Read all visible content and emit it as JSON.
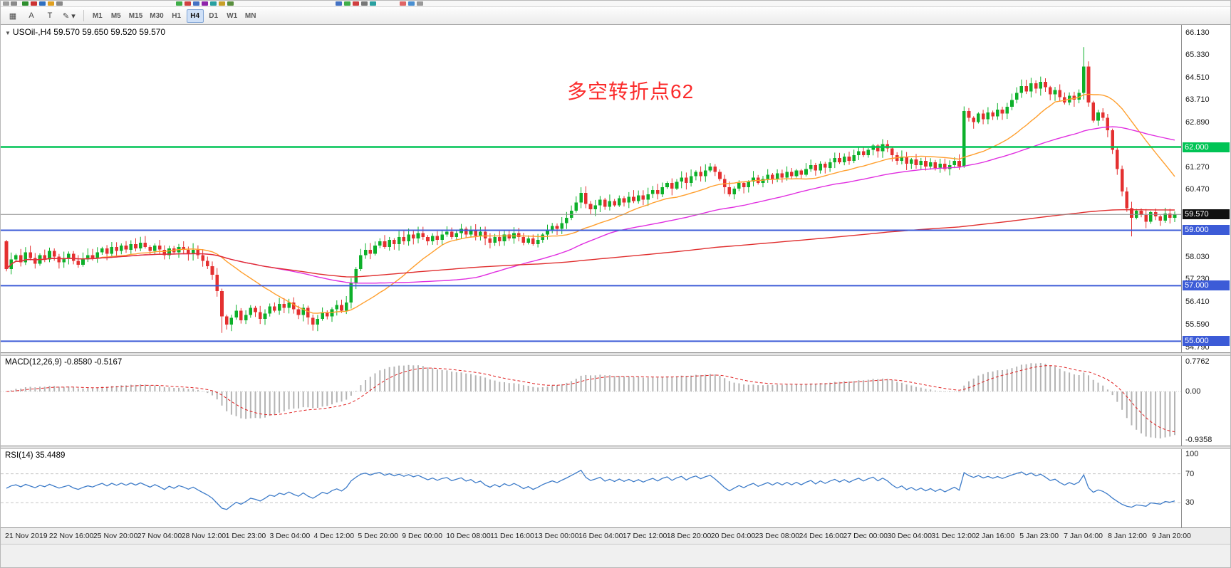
{
  "app": {
    "toolbar": {
      "tools": [
        {
          "name": "grid-handle",
          "glyph": "▦"
        },
        {
          "name": "cursor-a",
          "glyph": "A"
        },
        {
          "name": "text-t",
          "glyph": "T"
        },
        {
          "name": "draw-tools",
          "glyph": "✎ ▾"
        }
      ],
      "timeframes": [
        "M1",
        "M5",
        "M15",
        "M30",
        "H1",
        "H4",
        "D1",
        "W1",
        "MN"
      ],
      "active_timeframe": "H4"
    },
    "top_icon_fragments": [
      {
        "x": 3,
        "c": "#9e9e9e"
      },
      {
        "x": 14,
        "c": "#8a8a8a"
      },
      {
        "x": 30,
        "c": "#2f8f2f"
      },
      {
        "x": 42,
        "c": "#cc3333"
      },
      {
        "x": 54,
        "c": "#2f6fbf"
      },
      {
        "x": 66,
        "c": "#e0a020"
      },
      {
        "x": 78,
        "c": "#888888"
      },
      {
        "x": 246,
        "c": "#3fae49"
      },
      {
        "x": 258,
        "c": "#d04040"
      },
      {
        "x": 270,
        "c": "#4472c4"
      },
      {
        "x": 282,
        "c": "#8e24aa"
      },
      {
        "x": 294,
        "c": "#2aa0a0"
      },
      {
        "x": 306,
        "c": "#c8a028"
      },
      {
        "x": 318,
        "c": "#5a8f3f"
      },
      {
        "x": 470,
        "c": "#4472c4"
      },
      {
        "x": 482,
        "c": "#3fae49"
      },
      {
        "x": 494,
        "c": "#d04040"
      },
      {
        "x": 506,
        "c": "#777777"
      },
      {
        "x": 518,
        "c": "#2aa0a0"
      },
      {
        "x": 560,
        "c": "#e06666"
      },
      {
        "x": 572,
        "c": "#4a90d2"
      },
      {
        "x": 584,
        "c": "#999999"
      }
    ]
  },
  "chart": {
    "collapse_glyph": "▼",
    "symbol_label": "USOil-,H4",
    "quote": "59.570 59.650 59.520 59.570",
    "annotation": {
      "text": "多空转折点62",
      "color": "#fb2b2b"
    },
    "y_axis_labels": [
      "66.130",
      "65.330",
      "64.510",
      "63.710",
      "62.890",
      "61.270",
      "60.470",
      "58.030",
      "57.230",
      "56.410",
      "55.590",
      "54.790"
    ]
  },
  "macd": {
    "label": "MACD(12,26,9)",
    "value_main": "-0.8580",
    "value_signal": "-0.5167",
    "fast": 12,
    "slow": 26,
    "signal": 9,
    "axis_labels": [
      "0.7762",
      "0.00",
      "-0.9358"
    ],
    "hist_color": "#b4b4b4",
    "signal_color": "#e02020"
  },
  "rsi": {
    "label": "RSI(14)",
    "value": "35.4489",
    "period": 14,
    "levels": [
      70,
      30
    ],
    "axis_labels": [
      "100",
      "70",
      "30"
    ],
    "color": "#3e7cc9"
  },
  "time_axis": {
    "labels": [
      "21 Nov 2019",
      "22 Nov 16:00",
      "25 Nov 20:00",
      "27 Nov 04:00",
      "28 Nov 12:00",
      "1 Dec 23:00",
      "3 Dec 04:00",
      "4 Dec 12:00",
      "5 Dec 20:00",
      "9 Dec 00:00",
      "10 Dec 08:00",
      "11 Dec 16:00",
      "13 Dec 00:00",
      "16 Dec 04:00",
      "17 Dec 12:00",
      "18 Dec 20:00",
      "20 Dec 04:00",
      "23 Dec 08:00",
      "24 Dec 16:00",
      "27 Dec 00:00",
      "30 Dec 04:00",
      "31 Dec 12:00",
      "2 Jan 16:00",
      "5 Jan 23:00",
      "7 Jan 04:00",
      "8 Jan 12:00",
      "9 Jan 20:00"
    ]
  },
  "chart_data": {
    "type": "candlestick",
    "symbol": "USOil",
    "timeframe": "H4",
    "ylim": [
      54.6,
      66.4
    ],
    "first_open": 58.6,
    "up_color": "#0db02a",
    "down_color": "#e43030",
    "bid_line_color": "#8c8c8c",
    "closes": [
      57.6,
      57.95,
      58.1,
      57.85,
      58.2,
      58.0,
      57.8,
      58.1,
      57.95,
      58.25,
      58.05,
      57.85,
      58.0,
      58.15,
      57.9,
      57.75,
      57.95,
      58.1,
      58.0,
      58.2,
      58.35,
      58.15,
      58.4,
      58.25,
      58.45,
      58.3,
      58.5,
      58.35,
      58.55,
      58.4,
      58.25,
      58.45,
      58.3,
      58.1,
      58.35,
      58.2,
      58.4,
      58.3,
      58.15,
      58.3,
      58.1,
      57.9,
      57.7,
      57.4,
      56.8,
      55.9,
      55.6,
      55.85,
      56.1,
      55.75,
      55.95,
      56.2,
      56.05,
      55.8,
      56.0,
      56.25,
      56.1,
      56.35,
      56.2,
      56.4,
      56.15,
      55.95,
      56.2,
      55.85,
      55.6,
      55.8,
      56.05,
      55.9,
      56.15,
      56.3,
      56.1,
      56.4,
      57.1,
      57.6,
      58.1,
      58.3,
      58.15,
      58.45,
      58.6,
      58.4,
      58.65,
      58.5,
      58.75,
      58.6,
      58.85,
      58.7,
      58.9,
      58.75,
      58.6,
      58.8,
      58.65,
      58.85,
      58.95,
      58.75,
      58.9,
      59.05,
      58.85,
      59.0,
      58.8,
      58.95,
      58.7,
      58.55,
      58.75,
      58.6,
      58.85,
      58.7,
      58.9,
      58.75,
      58.55,
      58.7,
      58.5,
      58.65,
      58.85,
      59.0,
      59.15,
      59.05,
      59.25,
      59.45,
      59.7,
      60.0,
      60.35,
      59.95,
      59.75,
      59.9,
      60.1,
      59.85,
      60.05,
      59.9,
      60.15,
      60.0,
      60.2,
      60.05,
      60.25,
      60.1,
      60.3,
      60.45,
      60.3,
      60.55,
      60.7,
      60.5,
      60.75,
      60.9,
      60.7,
      60.95,
      61.1,
      60.95,
      61.15,
      61.3,
      61.1,
      60.85,
      60.55,
      60.3,
      60.5,
      60.7,
      60.55,
      60.75,
      60.9,
      60.7,
      60.85,
      61.0,
      60.85,
      61.05,
      60.9,
      61.1,
      60.95,
      61.15,
      61.0,
      61.2,
      61.35,
      61.15,
      61.4,
      61.25,
      61.45,
      61.6,
      61.45,
      61.65,
      61.5,
      61.7,
      61.85,
      61.7,
      61.9,
      62.05,
      61.85,
      62.1,
      61.95,
      61.7,
      61.5,
      61.65,
      61.4,
      61.55,
      61.35,
      61.5,
      61.3,
      61.45,
      61.25,
      61.4,
      61.2,
      61.35,
      61.5,
      61.3,
      63.3,
      63.05,
      62.9,
      63.2,
      63.0,
      63.25,
      63.1,
      63.35,
      63.2,
      63.45,
      63.7,
      63.95,
      64.2,
      64.0,
      64.3,
      64.1,
      64.35,
      64.15,
      63.9,
      64.05,
      63.8,
      63.6,
      63.85,
      63.7,
      63.95,
      64.9,
      63.6,
      62.95,
      63.25,
      63.05,
      62.6,
      61.9,
      61.2,
      60.4,
      59.8,
      59.45,
      59.7,
      59.55,
      59.3,
      59.65,
      59.5,
      59.35,
      59.6,
      59.45,
      59.57
    ],
    "extremes": {
      "45": {
        "low": 55.3
      },
      "64": {
        "low": 55.38
      },
      "120": {
        "high": 60.55
      },
      "147": {
        "high": 61.42
      },
      "183": {
        "high": 62.28
      },
      "225": {
        "high": 65.6
      },
      "235": {
        "low": 58.78
      }
    },
    "moving_averages": [
      {
        "period": 20,
        "color": "#ff9f2e"
      },
      {
        "period": 55,
        "color": "#e02ee0"
      },
      {
        "period": 400,
        "color": "#e02e2e"
      }
    ],
    "hlines": [
      {
        "value": 62.0,
        "label": "62.000",
        "color": "#00c455",
        "width": 2.5
      },
      {
        "value": 59.0,
        "label": "59.000",
        "color": "#3c5bd7",
        "width": 2
      },
      {
        "value": 57.0,
        "label": "57.000",
        "color": "#3c5bd7",
        "width": 2
      },
      {
        "value": 55.0,
        "label": "55.000",
        "color": "#3c5bd7",
        "width": 2
      }
    ],
    "bid": {
      "value": 59.57,
      "label": "59.570"
    }
  }
}
